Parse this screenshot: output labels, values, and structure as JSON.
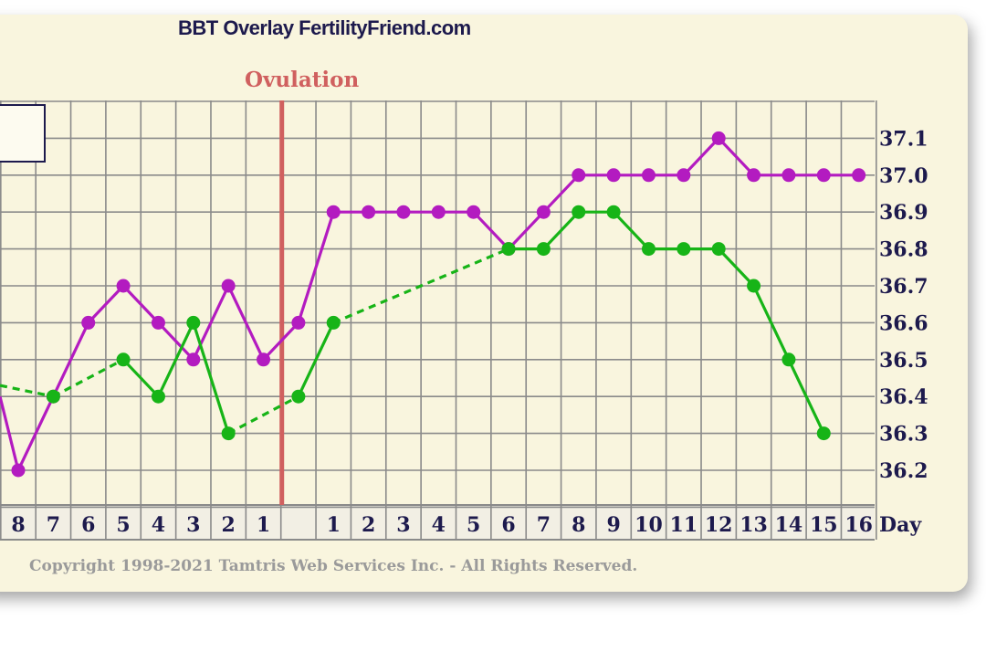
{
  "header": {
    "title": "BBT Overlay FertilityFriend.com",
    "copyright": "Copyright 1998-2021 Tamtris Web Services Inc. - All Rights Reserved."
  },
  "colors": {
    "background": "#f9f5de",
    "grid": "#8a8a8a",
    "ovulation": "#d0605f",
    "series_purple": "#b31bc0",
    "series_green": "#17b417",
    "axis_text": "#1d1a4d"
  },
  "chart_data": {
    "type": "line",
    "ovulation_label": "Ovulation",
    "day_axis_label": "Day",
    "y_ticks": [
      "36.2",
      "36.3",
      "36.4",
      "36.5",
      "36.6",
      "36.7",
      "36.8",
      "36.9",
      "37.0",
      "37.1"
    ],
    "ylim": [
      36.1,
      37.2
    ],
    "x_tick_labels": [
      "8",
      "7",
      "6",
      "5",
      "4",
      "3",
      "2",
      "1",
      "",
      "1",
      "2",
      "3",
      "4",
      "5",
      "6",
      "7",
      "8",
      "9",
      "10",
      "11",
      "12",
      "13",
      "14",
      "15",
      "16"
    ],
    "grid": true,
    "series": [
      {
        "color": "purple",
        "values": [
          36.2,
          36.4,
          36.6,
          36.7,
          36.6,
          36.5,
          36.7,
          36.5,
          36.6,
          36.9,
          36.9,
          36.9,
          36.9,
          36.9,
          36.8,
          36.9,
          37.0,
          37.0,
          37.0,
          37.0,
          37.1,
          37.0,
          37.0,
          37.0,
          37.0
        ]
      },
      {
        "color": "green",
        "values": [
          null,
          36.4,
          null,
          36.5,
          36.4,
          36.6,
          36.3,
          null,
          36.4,
          36.6,
          null,
          null,
          null,
          null,
          36.8,
          36.8,
          36.9,
          36.9,
          36.8,
          36.8,
          36.8,
          36.7,
          36.5,
          36.3,
          null
        ]
      }
    ]
  }
}
